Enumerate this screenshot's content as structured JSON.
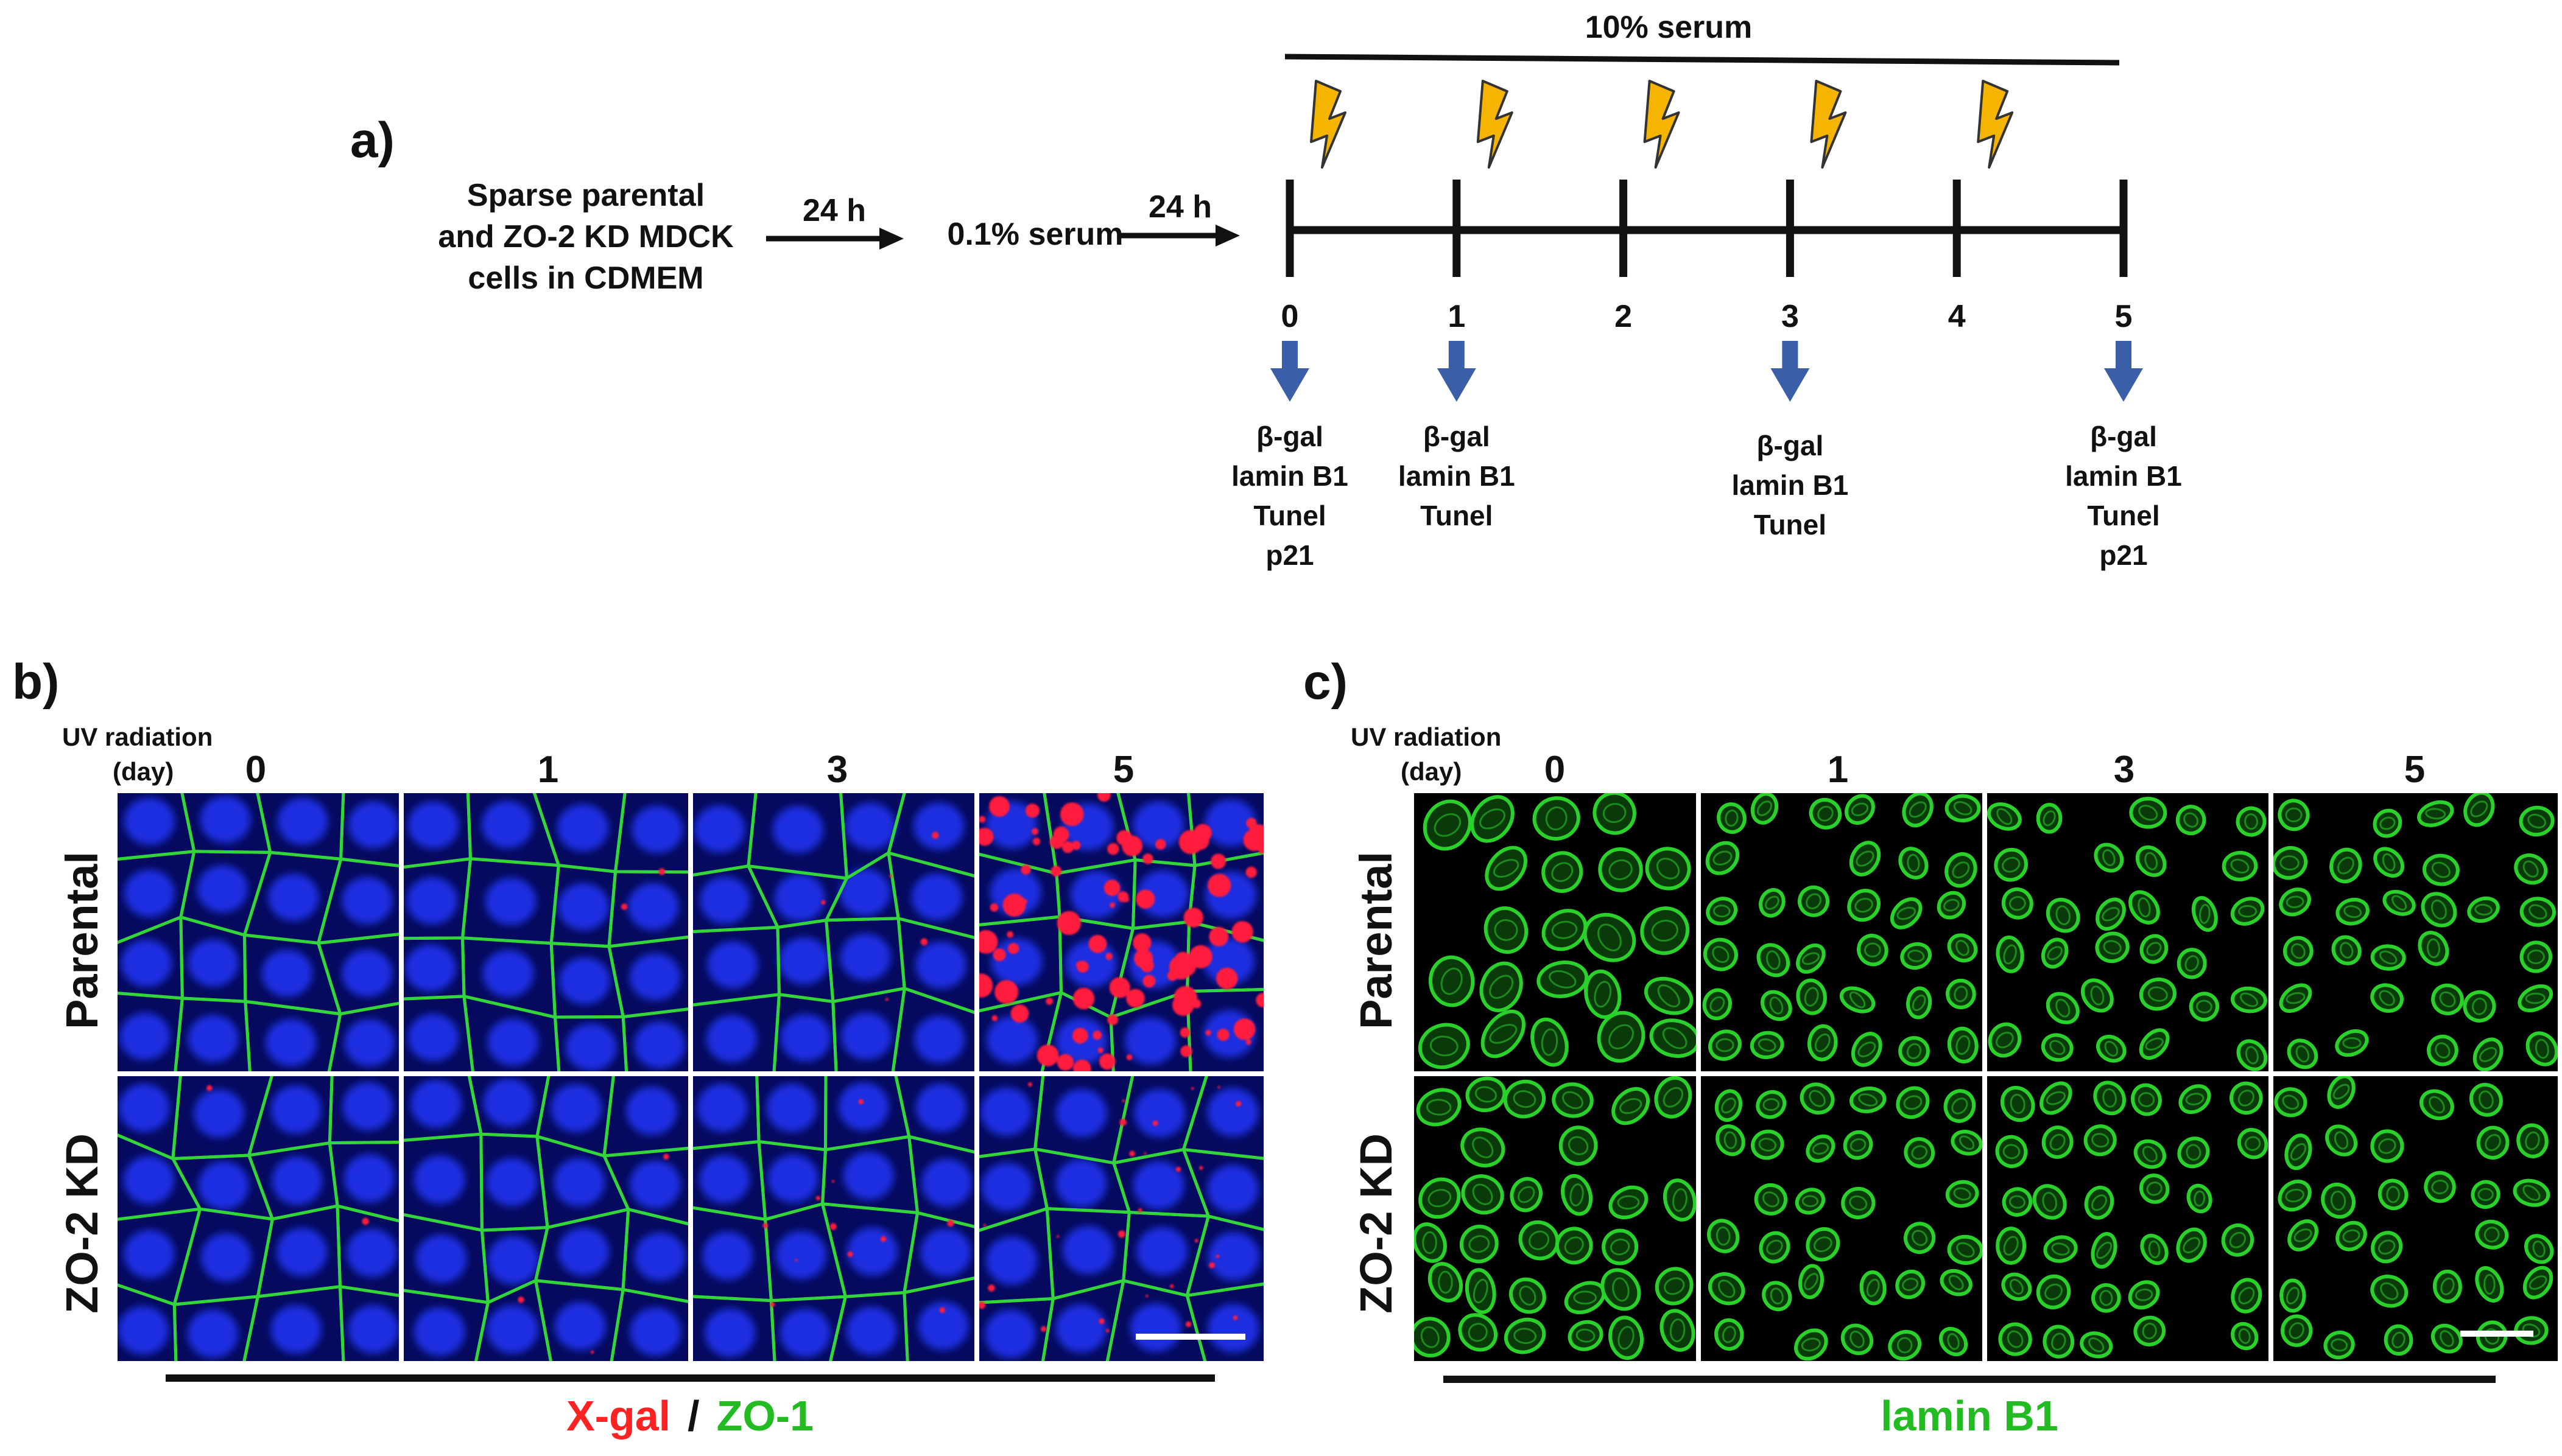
{
  "panel_a": {
    "letter": "a)",
    "start_lines": [
      "Sparse parental",
      "and ZO-2 KD MDCK",
      "cells in CDMEM"
    ],
    "step1_label": "24 h",
    "starve_label": "0.1% serum",
    "step2_label": "24 h",
    "serum_label": "10% serum",
    "uv_icon": "lightning-bolt-icon",
    "days": [
      "0",
      "1",
      "2",
      "3",
      "4",
      "5"
    ],
    "uv_days": [
      "0",
      "1",
      "2",
      "3",
      "4"
    ],
    "measurement_days": [
      {
        "day": "0",
        "lines": [
          "β-gal",
          "lamin B1",
          "Tunel",
          "p21"
        ]
      },
      {
        "day": "1",
        "lines": [
          "β-gal",
          "lamin B1",
          "Tunel"
        ]
      },
      {
        "day": "3",
        "lines": [
          "β-gal",
          "lamin B1",
          "Tunel"
        ]
      },
      {
        "day": "5",
        "lines": [
          "β-gal",
          "lamin B1",
          "Tunel",
          "p21"
        ]
      }
    ],
    "colors": {
      "bolt": "#f4b400",
      "bolt_outline": "#333333",
      "down_arrow": "#3a5ea8"
    }
  },
  "panel_b": {
    "letter": "b)",
    "uv_label_lines": [
      "UV radiation",
      "(day)"
    ],
    "columns": [
      "0",
      "1",
      "3",
      "5"
    ],
    "rows": [
      "Parental",
      "ZO-2 KD"
    ],
    "stain_red": "X-gal",
    "separator": "/",
    "stain_green": "ZO-1",
    "red_spot_level": [
      [
        0,
        0.02,
        0.06,
        1.0
      ],
      [
        0.02,
        0.03,
        0.12,
        0.3
      ]
    ],
    "colors": {
      "nuclei": "#1a2de0",
      "junctions": "#33d63a",
      "red_stain": "#ff1f3d",
      "label_red": "#ff2222",
      "label_green": "#22bb22"
    }
  },
  "panel_c": {
    "letter": "c)",
    "uv_label_lines": [
      "UV radiation",
      "(day)"
    ],
    "columns": [
      "0",
      "1",
      "3",
      "5"
    ],
    "rows": [
      "Parental",
      "ZO-2 KD"
    ],
    "stain": "lamin B1",
    "colors": {
      "nuclear_rim": "#2bd12b",
      "label_green": "#22bb22"
    }
  }
}
